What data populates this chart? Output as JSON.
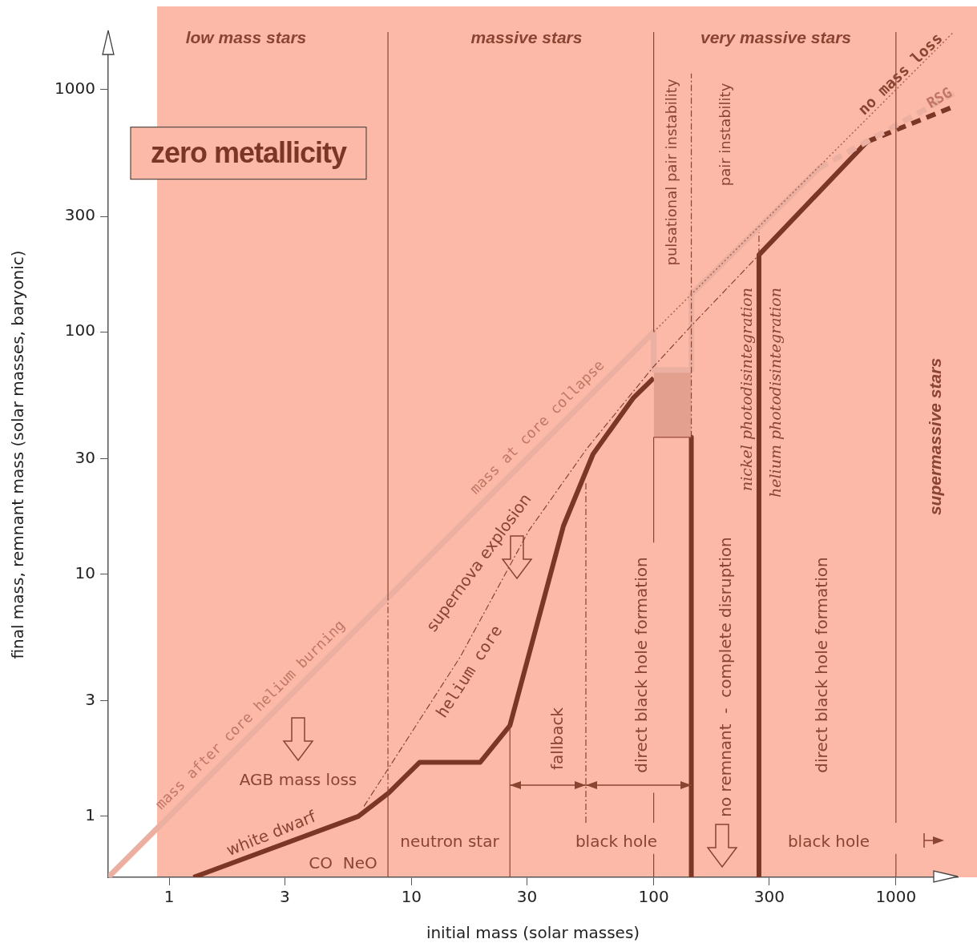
{
  "chart_data": {
    "type": "line",
    "xlabel": "initial mass (solar masses)",
    "ylabel": "final mass, remnant mass (solar masses, baryonic)",
    "log": "xy",
    "grid": false,
    "legend": false,
    "marker": "none",
    "xlim": [
      0.56,
      1800
    ],
    "ylim": [
      0.56,
      1730
    ],
    "xticks": [
      1,
      3,
      10,
      30,
      100,
      300,
      1000
    ],
    "yticks": [
      1,
      3,
      10,
      30,
      100,
      300,
      1000
    ],
    "series": [
      {
        "color": "#ebb0a2",
        "x": [
          0.56,
          100
        ],
        "values": [
          0.56,
          100
        ]
      },
      {
        "color": "#ebb0a2",
        "x": [
          100,
          100,
          143,
          143,
          482
        ],
        "values": [
          100,
          69.6,
          69.6,
          143,
          475
        ]
      },
      {
        "color": "#ebb0a2",
        "line_style": "dashed",
        "x": [
          482,
          1730
        ],
        "values": [
          475,
          964
        ]
      },
      {
        "color": "#a9634f",
        "line_style": "dotted",
        "x": [
          100,
          1730
        ],
        "values": [
          100,
          1730
        ]
      },
      {
        "color": "#8b4332",
        "line_style": "dashed",
        "x": [
          6.37,
          15.9,
          30.5,
          53,
          100,
          143,
          272
        ],
        "values": [
          1.1,
          4.55,
          15.1,
          33,
          72,
          106,
          208
        ]
      },
      {
        "color": "#a85a48",
        "x": [
          100,
          143
        ],
        "values": [
          36.7,
          36.7
        ]
      },
      {
        "type": "area",
        "color": "#e3a08f",
        "x": [
          100,
          143
        ],
        "values": [
          69.6,
          69.6
        ]
      },
      {
        "color": "#7b3626",
        "x": [
          1.26,
          6.04,
          8.06,
          10.8,
          19.2,
          25.5,
          42.4,
          56.2,
          82.3,
          100
        ],
        "values": [
          0.56,
          1,
          1.25,
          1.67,
          1.67,
          2.37,
          15.8,
          31.3,
          53.3,
          64.5
        ]
      },
      {
        "color": "#7b3626",
        "x": [
          143,
          143
        ],
        "values": [
          36.7,
          0.56
        ]
      },
      {
        "color": "#7b3626",
        "x": [
          272,
          272,
          760
        ],
        "values": [
          0.56,
          208,
          610
        ]
      },
      {
        "color": "#7b3626",
        "line_style": "dashed",
        "x": [
          760,
          1770
        ],
        "values": [
          610,
          859
        ]
      },
      {
        "color": "#8b4332",
        "x": [
          8,
          8
        ],
        "values": [
          0.56,
          1.25
        ]
      },
      {
        "color": "#8b4332",
        "line_style": "dashed",
        "x": [
          8,
          8
        ],
        "values": [
          1.25,
          8
        ]
      },
      {
        "color": "#8b4332",
        "x": [
          8,
          8
        ],
        "values": [
          8,
          1730
        ]
      },
      {
        "color": "#8b4332",
        "x": [
          100,
          100
        ],
        "values": [
          100,
          1730
        ]
      },
      {
        "color": "#8b4332",
        "x": [
          100,
          100
        ],
        "values": [
          13.5,
          36.7
        ]
      },
      {
        "color": "#8b4332",
        "x": [
          100,
          100
        ],
        "values": [
          0.94,
          1.25
        ]
      },
      {
        "color": "#8b4332",
        "x": [
          100,
          100
        ],
        "values": [
          0.56,
          0.7
        ]
      },
      {
        "color": "#8b4332",
        "x": [
          1000,
          1000
        ],
        "values": [
          0.94,
          1730
        ]
      },
      {
        "color": "#8b4332",
        "x": [
          1000,
          1000
        ],
        "values": [
          0.56,
          0.7
        ]
      },
      {
        "color": "#8b4332",
        "x": [
          25.5,
          25.5
        ],
        "values": [
          0.56,
          2.37
        ]
      },
      {
        "color": "#8b4332",
        "line_style": "dashed",
        "x": [
          52.5,
          52.5
        ],
        "values": [
          0.94,
          24.3
        ]
      },
      {
        "color": "#8b4332",
        "line_style": "dashed",
        "x": [
          143,
          143
        ],
        "values": [
          36.7,
          1166
        ]
      },
      {
        "color": "#8b4332",
        "line_style": "dashed",
        "x": [
          272,
          272
        ],
        "values": [
          208,
          257
        ]
      }
    ],
    "annotations": [
      "low mass stars",
      "massive stars",
      "very massive stars",
      "zero metallicity",
      "mass after core helium burning",
      "mass at core collapse",
      "supernova explosion",
      "helium core",
      "AGB mass loss",
      "white dwarf",
      "CO  NeO",
      "neutron star",
      "black hole",
      "fallback",
      "direct black hole formation",
      "pulsational pair instability",
      "pair instability",
      "no remnant  -  complete disruption",
      "nickel photodisintegration",
      "helium photodisintegration",
      "direct black hole formation",
      "black hole",
      "no mass loss",
      "RSG",
      "supermassive stars"
    ]
  }
}
